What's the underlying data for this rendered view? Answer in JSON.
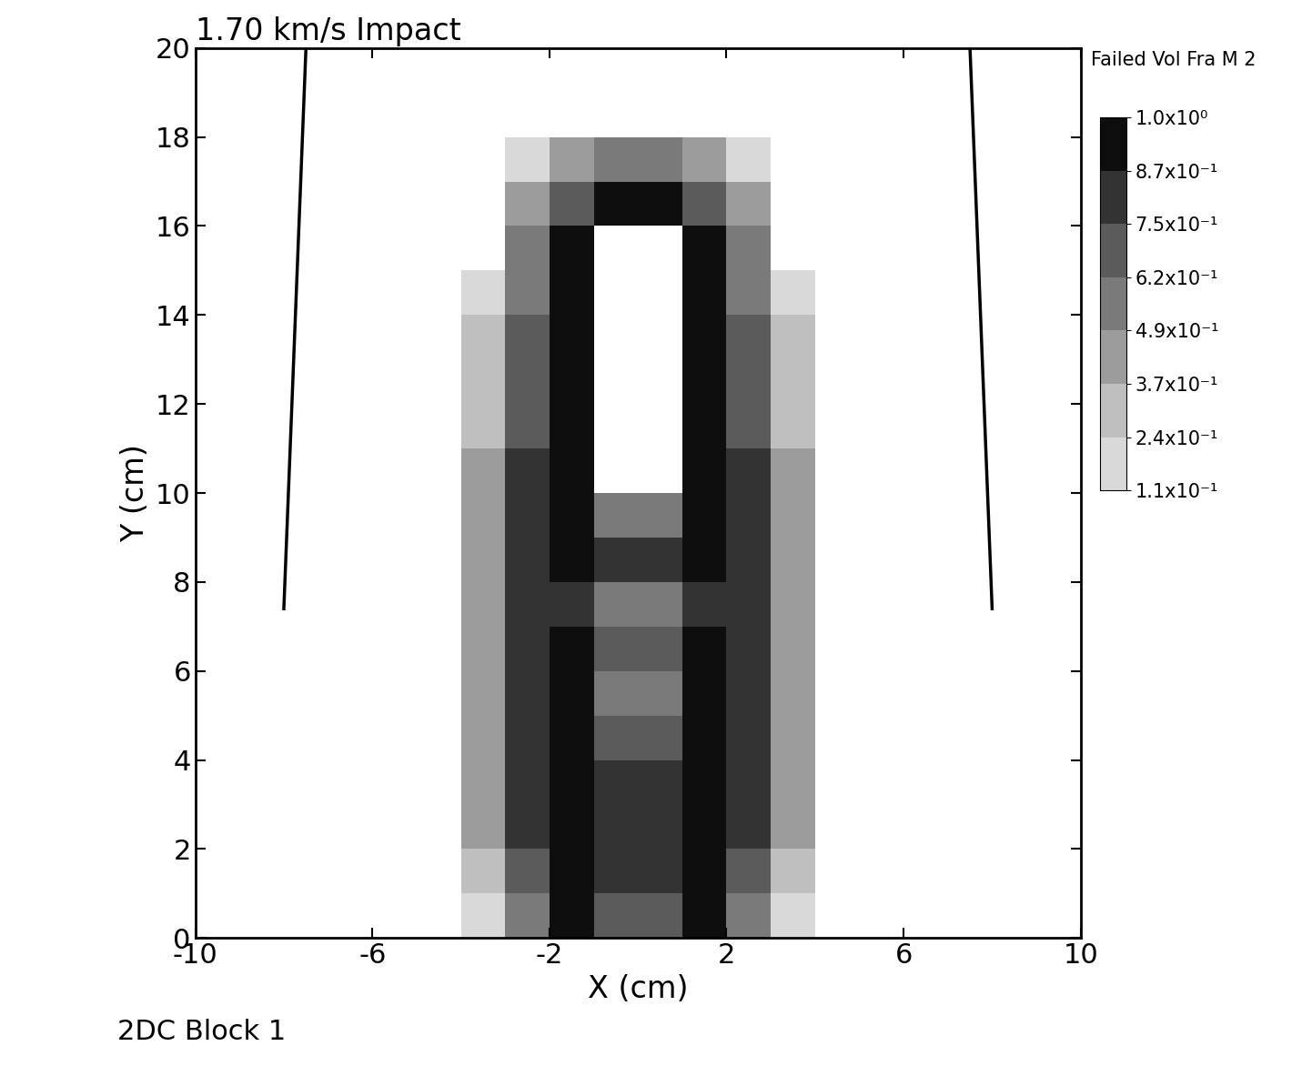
{
  "chart_data": {
    "type": "heatmap",
    "title": "1.70 km/s Impact",
    "x_label": "X (cm)",
    "y_label": "Y (cm)",
    "footer": "2DC Block 1",
    "xlim": [
      -10,
      10
    ],
    "ylim": [
      0,
      20
    ],
    "xticks": [
      -10,
      -6,
      -2,
      2,
      6,
      10
    ],
    "yticks": [
      0,
      2,
      4,
      6,
      8,
      10,
      12,
      14,
      16,
      18,
      20
    ],
    "x_edges": [
      -4,
      -3,
      -2,
      -1,
      0,
      1,
      2,
      3,
      4
    ],
    "y_edges": [
      0,
      1,
      2,
      3,
      4,
      5,
      6,
      7,
      8,
      9,
      10,
      11,
      12,
      13,
      14,
      15,
      16,
      17,
      18
    ],
    "cells": [
      [
        0.2,
        0.6,
        0.9,
        0.7,
        0.7,
        0.9,
        0.6,
        0.2
      ],
      [
        0.3,
        0.7,
        0.9,
        0.8,
        0.8,
        0.9,
        0.7,
        0.3
      ],
      [
        0.4,
        0.75,
        0.9,
        0.8,
        0.8,
        0.9,
        0.75,
        0.4
      ],
      [
        0.4,
        0.75,
        0.9,
        0.8,
        0.8,
        0.9,
        0.75,
        0.4
      ],
      [
        0.45,
        0.8,
        0.9,
        0.7,
        0.7,
        0.9,
        0.8,
        0.45
      ],
      [
        0.45,
        0.8,
        0.9,
        0.6,
        0.6,
        0.9,
        0.8,
        0.45
      ],
      [
        0.45,
        0.8,
        0.9,
        0.7,
        0.7,
        0.9,
        0.8,
        0.45
      ],
      [
        0.4,
        0.75,
        0.85,
        0.6,
        0.6,
        0.85,
        0.75,
        0.4
      ],
      [
        0.4,
        0.75,
        0.9,
        0.8,
        0.8,
        0.9,
        0.75,
        0.4
      ],
      [
        0.4,
        0.75,
        0.9,
        0.5,
        0.5,
        0.9,
        0.75,
        0.4
      ],
      [
        0.4,
        0.75,
        0.9,
        0.05,
        0.05,
        0.9,
        0.75,
        0.4
      ],
      [
        0.3,
        0.7,
        0.9,
        0.05,
        0.05,
        0.9,
        0.7,
        0.3
      ],
      [
        0.3,
        0.7,
        0.9,
        0.05,
        0.05,
        0.9,
        0.7,
        0.3
      ],
      [
        0.3,
        0.7,
        0.9,
        0.05,
        0.05,
        0.9,
        0.7,
        0.3
      ],
      [
        0.2,
        0.6,
        0.9,
        0.05,
        0.05,
        0.9,
        0.6,
        0.2
      ],
      [
        0.1,
        0.5,
        0.9,
        0.05,
        0.05,
        0.9,
        0.5,
        0.1
      ],
      [
        0,
        0.4,
        0.7,
        0.9,
        0.9,
        0.7,
        0.4,
        0
      ],
      [
        0,
        0.2,
        0.4,
        0.6,
        0.6,
        0.4,
        0.2,
        0
      ]
    ],
    "colorbar_title": "Failed Vol Fra M 2",
    "colorbar_range": [
      0.11,
      1.0
    ],
    "colorbar_ticks": [
      {
        "value": 1.0,
        "label": "1.0x10⁰"
      },
      {
        "value": 0.87,
        "label": "8.7x10⁻¹"
      },
      {
        "value": 0.75,
        "label": "7.5x10⁻¹"
      },
      {
        "value": 0.62,
        "label": "6.2x10⁻¹"
      },
      {
        "value": 0.49,
        "label": "4.9x10⁻¹"
      },
      {
        "value": 0.37,
        "label": "3.7x10⁻¹"
      },
      {
        "value": 0.24,
        "label": "2.4x10⁻¹"
      },
      {
        "value": 0.11,
        "label": "1.1x10⁻¹"
      }
    ],
    "series": [
      {
        "type": "line",
        "color": "#000000",
        "x": [
          -8.0,
          -7.5
        ],
        "values": [
          7.4,
          20.0
        ]
      },
      {
        "type": "line",
        "color": "#000000",
        "x": [
          8.0,
          7.5
        ],
        "values": [
          7.4,
          20.0
        ]
      }
    ]
  }
}
